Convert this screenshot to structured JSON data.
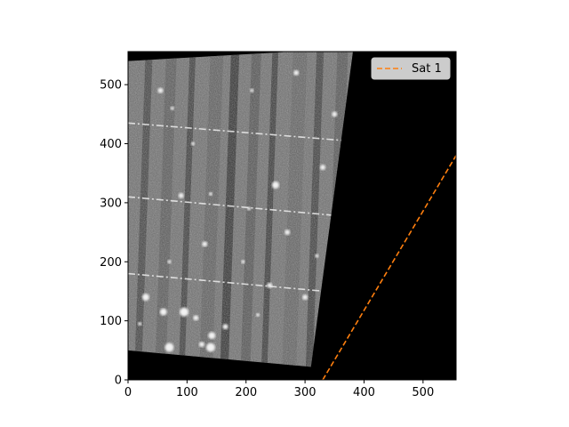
{
  "chart_data": {
    "type": "image",
    "description_free": true,
    "xlim": [
      0,
      556
    ],
    "ylim": [
      0,
      556
    ],
    "xticks": [
      0,
      100,
      200,
      300,
      400,
      500
    ],
    "yticks": [
      0,
      100,
      200,
      300,
      400,
      500
    ],
    "image": {
      "colormap": "gray",
      "footprint_corners": [
        [
          0,
          50
        ],
        [
          310,
          22
        ],
        [
          382,
          562
        ],
        [
          0,
          540
        ]
      ],
      "detector_seam_rows": [
        [
          0,
          180,
          556,
          130
        ],
        [
          0,
          310,
          556,
          260
        ],
        [
          0,
          435,
          556,
          390
        ]
      ],
      "satellite_streak_band": [
        [
          330,
          0
        ],
        [
          556,
          380
        ]
      ]
    },
    "series": [
      {
        "name": "Sat 1",
        "style": "dashed",
        "color": "#ff7f0e",
        "x": [
          330,
          556
        ],
        "y": [
          0,
          380
        ]
      }
    ],
    "legend": {
      "placement": "top-right"
    }
  }
}
